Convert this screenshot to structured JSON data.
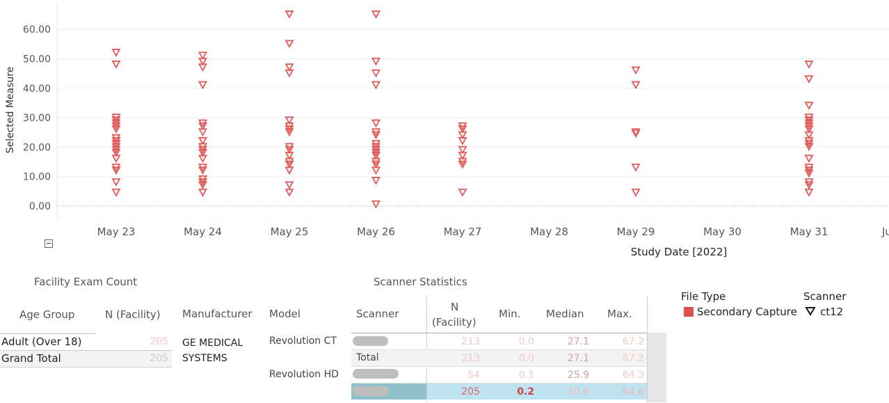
{
  "chart_data": {
    "type": "scatter",
    "xlabel": "Study Date [2022]",
    "ylabel": "Selected Measure",
    "ylim": [
      -3,
      67
    ],
    "x_ticks": [
      "May 23",
      "May 24",
      "May 25",
      "May 26",
      "May 27",
      "May 28",
      "May 29",
      "May 30",
      "May 31",
      "Ju"
    ],
    "y_ticks": [
      "0.00",
      "10.00",
      "20.00",
      "30.00",
      "40.00",
      "50.00",
      "60.00"
    ],
    "y_tick_values": [
      0,
      10,
      20,
      30,
      40,
      50,
      60
    ],
    "marker_color": "#e05a5a",
    "series": [
      {
        "x": "May 23",
        "values": [
          52,
          48,
          30,
          29,
          28,
          27,
          26,
          23,
          22,
          21,
          20,
          19,
          18,
          16,
          13,
          12,
          8,
          4.5
        ]
      },
      {
        "x": "May 24",
        "values": [
          51,
          49,
          47,
          41,
          28,
          27,
          25,
          22,
          20,
          19,
          18,
          16,
          13,
          12,
          9,
          8,
          7,
          4.5
        ]
      },
      {
        "x": "May 25",
        "values": [
          65,
          55,
          47,
          45,
          29,
          27,
          26,
          25,
          20,
          19,
          17,
          15,
          14,
          12,
          7,
          4.5
        ]
      },
      {
        "x": "May 26",
        "values": [
          65,
          49,
          45,
          41,
          28,
          25,
          24,
          21,
          20,
          19,
          18,
          17,
          15,
          14,
          12,
          8.5,
          0.5
        ]
      },
      {
        "x": "May 27",
        "values": [
          27,
          26,
          24,
          22,
          19,
          17,
          15,
          14,
          4.5
        ]
      },
      {
        "x": "May 29",
        "values": [
          46,
          41,
          25,
          24.5,
          13,
          4.5
        ]
      },
      {
        "x": "May 31",
        "values": [
          48,
          43,
          34,
          30,
          29,
          28,
          27,
          26,
          24,
          22,
          21,
          20,
          16,
          13,
          12,
          11,
          8,
          7,
          4.5
        ]
      }
    ]
  },
  "collapse_icon": "minus-box-icon",
  "facility": {
    "title": "Facility Exam Count",
    "col_age": "Age Group",
    "col_n": "N (Facility)",
    "rows": [
      {
        "label": "Adult (Over 18)",
        "n": "205"
      },
      {
        "label": "Grand Total",
        "n": "205"
      }
    ]
  },
  "scanner": {
    "title": "Scanner Statistics",
    "headers": {
      "manufacturer": "Manufacturer",
      "model": "Model",
      "scanner": "Scanner",
      "n_line1": "N",
      "n_line2": "(Facility)",
      "min": "Min.",
      "median": "Median",
      "max": "Max."
    },
    "manufacturer": "GE MEDICAL SYSTEMS",
    "model1": "Revolution CT",
    "model2": "Revolution HD",
    "rows": [
      {
        "scanner": "",
        "n": "213",
        "min": "0.0",
        "median": "27.1",
        "max": "67.2"
      },
      {
        "scanner": "Total",
        "n": "213",
        "min": "0.0",
        "median": "27.1",
        "max": "67.2"
      },
      {
        "scanner": "",
        "n": "54",
        "min": "0.1",
        "median": "25.9",
        "max": "64.3"
      },
      {
        "scanner": "",
        "n": "205",
        "min": "0.2",
        "median": "20.6",
        "max": "64.6"
      }
    ]
  },
  "legend": {
    "file_type_title": "File Type",
    "file_type_item": "Secondary Capture",
    "file_type_color": "#e05050",
    "scanner_title": "Scanner",
    "scanner_item": "ct12",
    "scanner_icon": "down-triangle-icon"
  }
}
